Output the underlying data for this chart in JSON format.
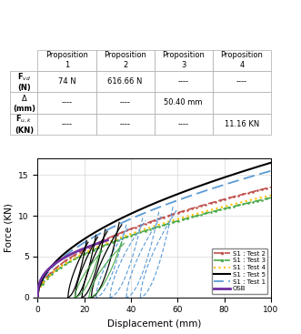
{
  "table_rows": [
    {
      "label": "F$_{vd}$\n(N)",
      "vals": [
        "74 N",
        "616.66 N",
        "----",
        "----"
      ]
    },
    {
      "label": "$\\Delta$\n(mm)",
      "vals": [
        "----",
        "----",
        "50.40 mm",
        ""
      ]
    },
    {
      "label": "F$_{u,k}$\n(KN)",
      "vals": [
        "----",
        "----",
        "----",
        "11.16 KN"
      ]
    }
  ],
  "col_headers": [
    "Proposition\n1",
    "Proposition\n2",
    "Proposition\n3",
    "Proposition\n4"
  ],
  "xlabel": "Displacement (mm)",
  "ylabel": "Force (KN)",
  "xlim": [
    0,
    100
  ],
  "ylim": [
    0,
    17
  ],
  "yticks": [
    0,
    5,
    10,
    15
  ],
  "xticks": [
    0,
    20,
    40,
    60,
    80,
    100
  ],
  "colors": {
    "test1": "#5b9bd5",
    "test2": "#c0504d",
    "test3": "#4aaa4a",
    "test4": "#ffc000",
    "test5": "#000000",
    "osb": "#7030a0"
  },
  "figsize": [
    3.31,
    3.67
  ],
  "dpi": 100
}
